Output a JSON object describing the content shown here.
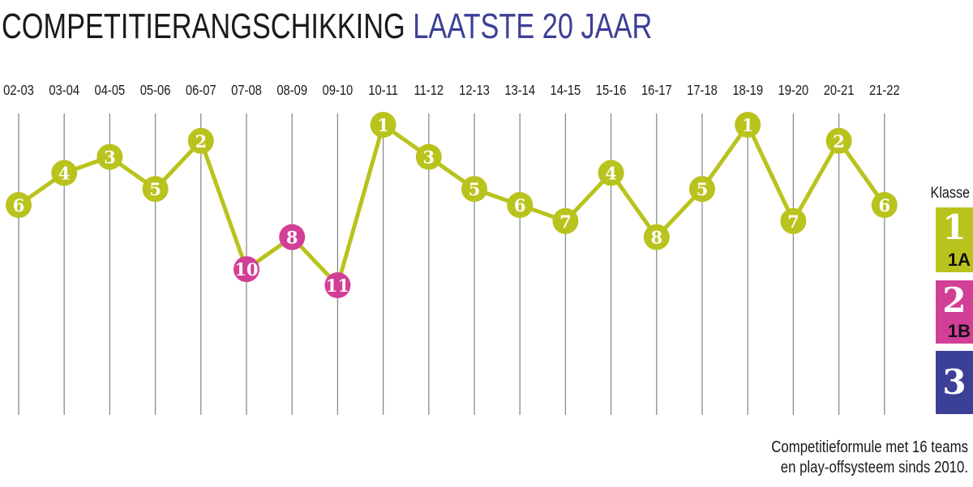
{
  "chart_data": {
    "type": "line",
    "title": "COMPETITIERANGSCHIKKING",
    "title_highlight": "LAATSTE 20 JAAR",
    "categories": [
      "02-03",
      "03-04",
      "04-05",
      "05-06",
      "06-07",
      "07-08",
      "08-09",
      "09-10",
      "10-11",
      "11-12",
      "12-13",
      "13-14",
      "14-15",
      "15-16",
      "16-17",
      "17-18",
      "18-19",
      "19-20",
      "20-21",
      "21-22"
    ],
    "series": [
      {
        "values": [
          6,
          4,
          3,
          5,
          2,
          10,
          8,
          11,
          1,
          3,
          5,
          6,
          7,
          4,
          8,
          5,
          1,
          7,
          2,
          6
        ],
        "klasse": [
          1,
          1,
          1,
          1,
          1,
          2,
          2,
          2,
          1,
          1,
          1,
          1,
          1,
          1,
          1,
          1,
          1,
          1,
          1,
          1
        ],
        "color": "#b9c31d"
      }
    ],
    "ylim": [
      1,
      16
    ],
    "y_inverted": true,
    "grid": "vertical"
  },
  "legend": {
    "title": "Klasse",
    "items": [
      {
        "number": "1",
        "sub": "1A",
        "color": "#b9c31d"
      },
      {
        "number": "2",
        "sub": "1B",
        "color": "#d23f96"
      },
      {
        "number": "3",
        "sub": "",
        "color": "#3c3f96"
      }
    ]
  },
  "footnote": {
    "line1": "Competitieformule met 16 teams",
    "line2": "en play-offsysteem sinds 2010."
  }
}
